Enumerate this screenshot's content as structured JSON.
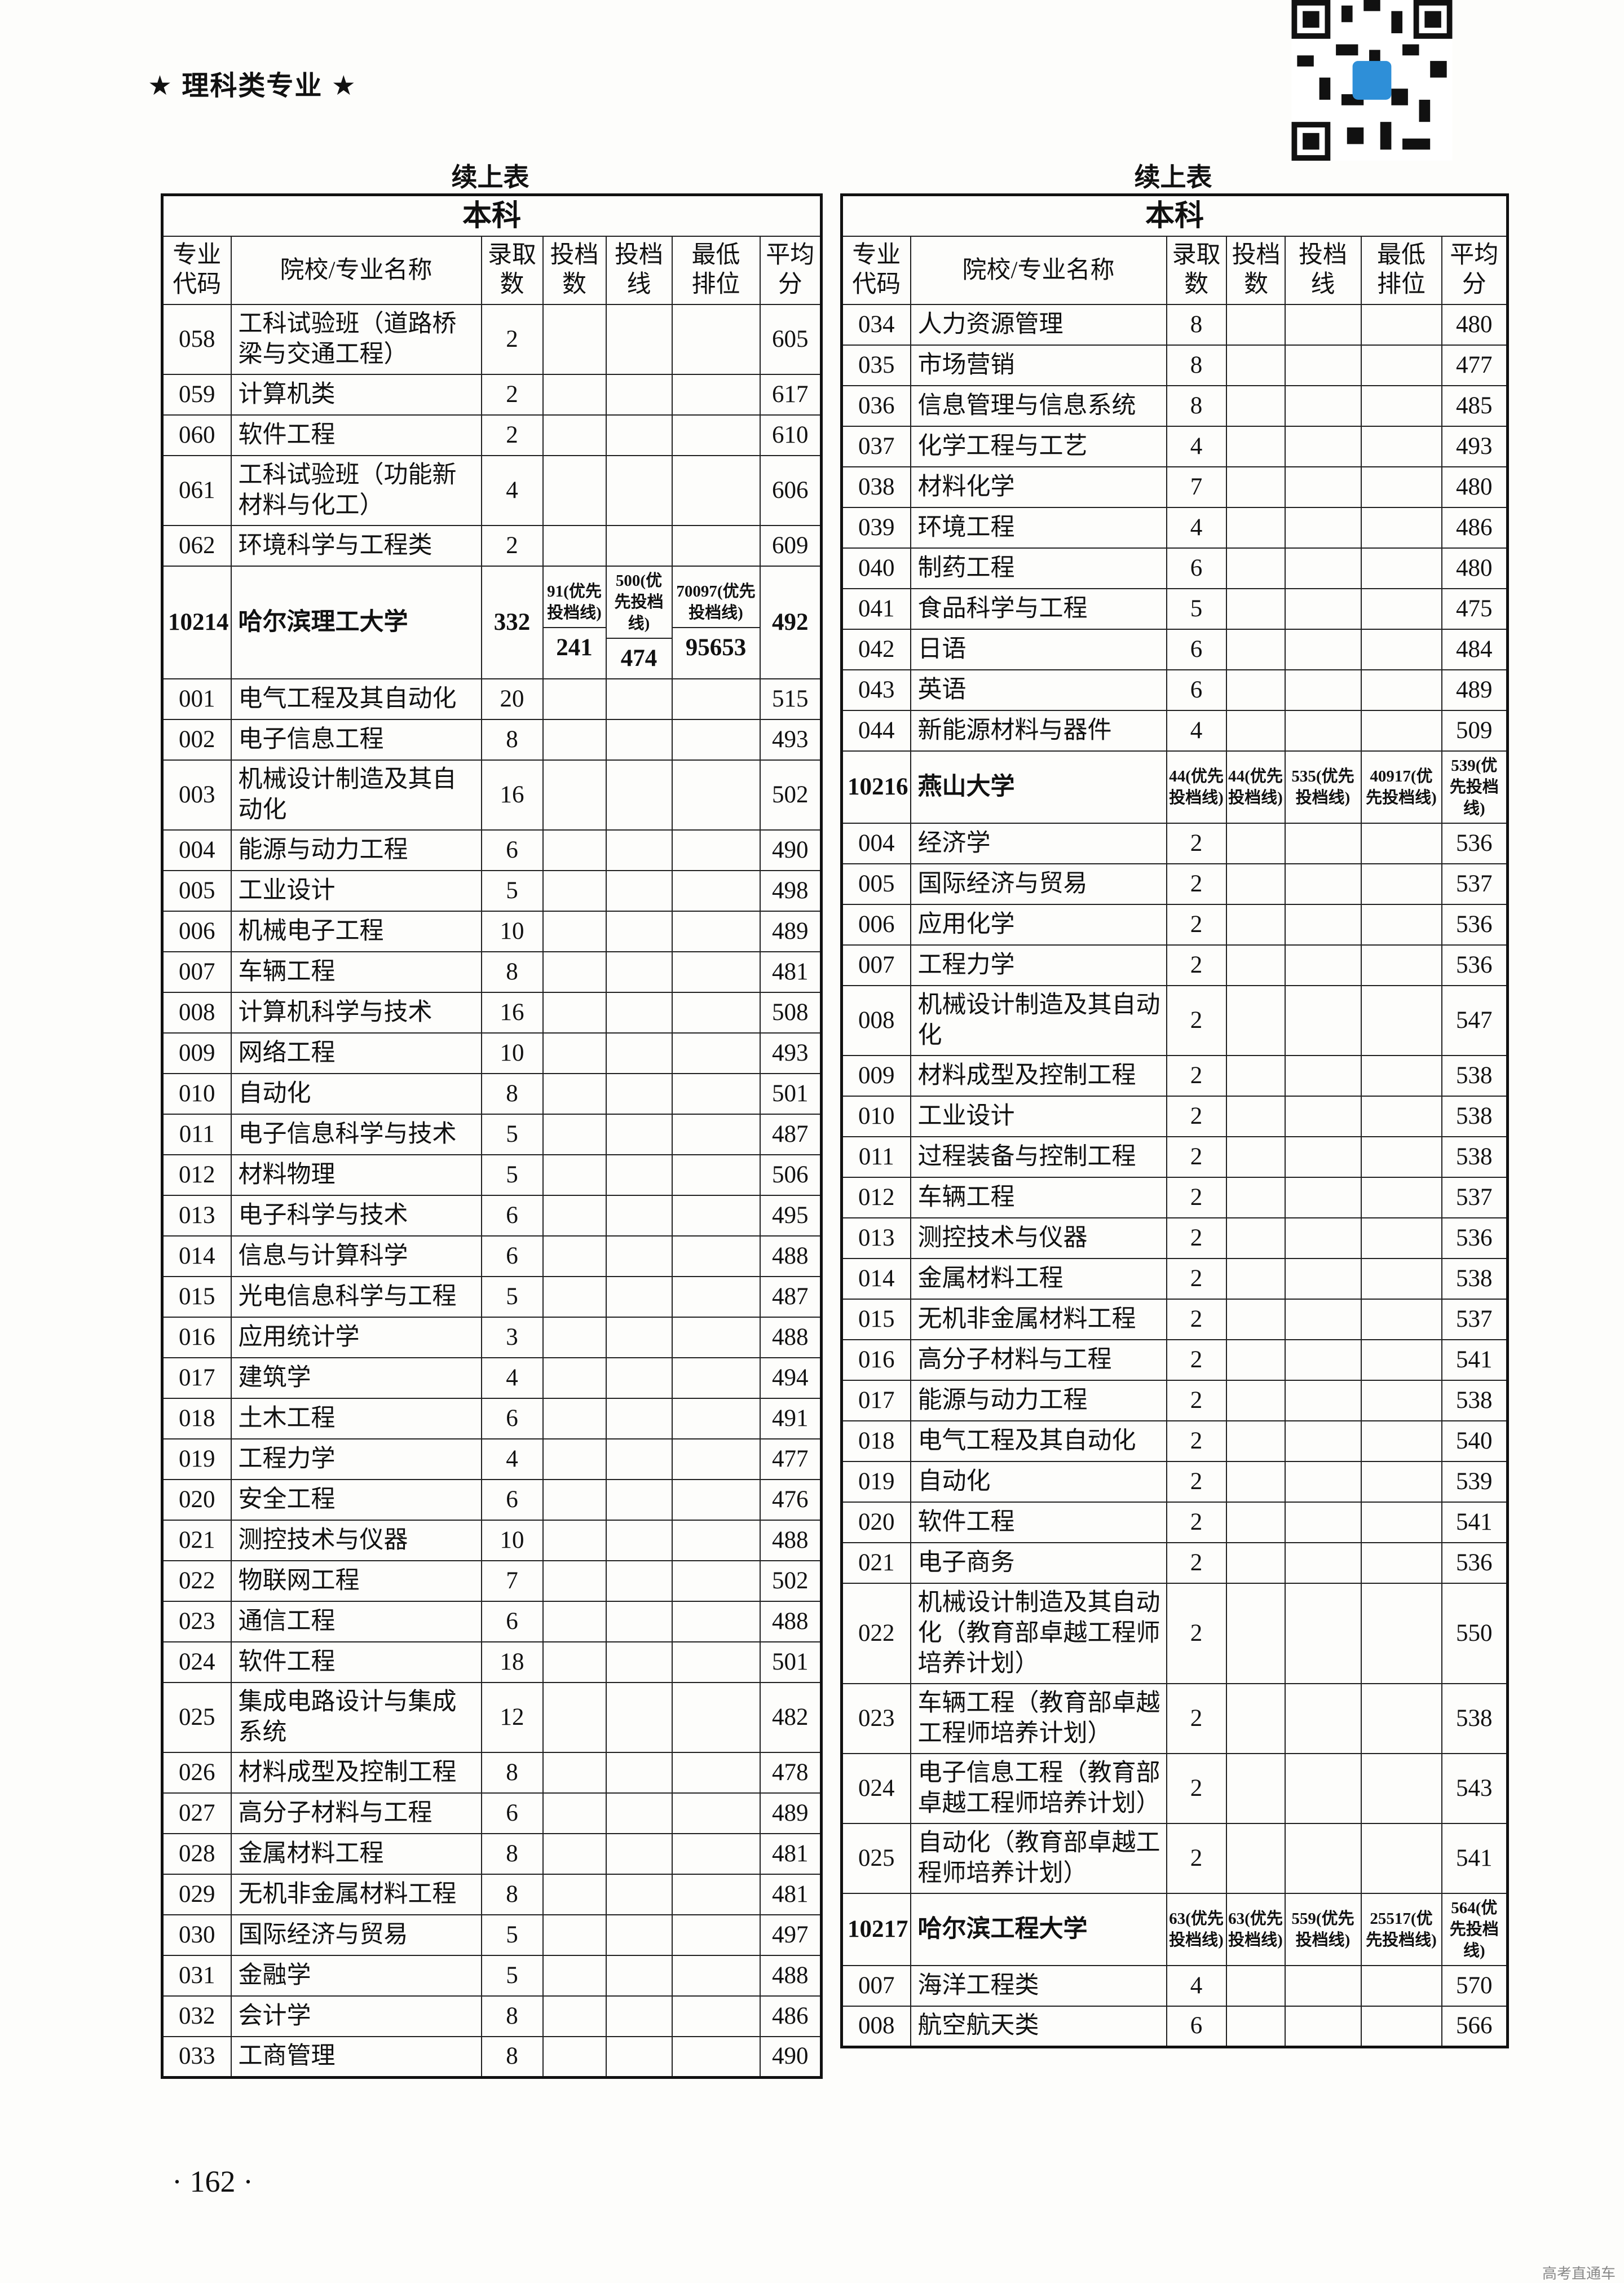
{
  "header": "★ 理科类专业 ★",
  "page_number": "· 162 ·",
  "footer": "高考直通车",
  "left_table": {
    "caption": "续上表",
    "section": "本科",
    "headers": [
      "专业代码",
      "院校/专业名称",
      "录取数",
      "投档数",
      "投档线",
      "最低排位",
      "平均分"
    ],
    "rows": [
      [
        "058",
        "工科试验班（道路桥梁与交通工程）",
        "2",
        null,
        null,
        null,
        "605"
      ],
      [
        "059",
        "计算机类",
        "2",
        null,
        null,
        null,
        "617"
      ],
      [
        "060",
        "软件工程",
        "2",
        null,
        null,
        null,
        "610"
      ],
      [
        "061",
        "工科试验班（功能新材料与化工）",
        "4",
        null,
        null,
        null,
        "606"
      ],
      [
        "062",
        "环境科学与工程类",
        "2",
        null,
        null,
        null,
        "609"
      ],
      [
        "10214",
        "哈尔滨理工大学",
        "332",
        [
          "91(优先投档线)",
          "241"
        ],
        [
          "500(优先投档线)",
          "474"
        ],
        [
          "70097(优先投档线)",
          "95653"
        ],
        "492"
      ],
      [
        "001",
        "电气工程及其自动化",
        "20",
        null,
        null,
        null,
        "515"
      ],
      [
        "002",
        "电子信息工程",
        "8",
        null,
        null,
        null,
        "493"
      ],
      [
        "003",
        "机械设计制造及其自动化",
        "16",
        null,
        null,
        null,
        "502"
      ],
      [
        "004",
        "能源与动力工程",
        "6",
        null,
        null,
        null,
        "490"
      ],
      [
        "005",
        "工业设计",
        "5",
        null,
        null,
        null,
        "498"
      ],
      [
        "006",
        "机械电子工程",
        "10",
        null,
        null,
        null,
        "489"
      ],
      [
        "007",
        "车辆工程",
        "8",
        null,
        null,
        null,
        "481"
      ],
      [
        "008",
        "计算机科学与技术",
        "16",
        null,
        null,
        null,
        "508"
      ],
      [
        "009",
        "网络工程",
        "10",
        null,
        null,
        null,
        "493"
      ],
      [
        "010",
        "自动化",
        "8",
        null,
        null,
        null,
        "501"
      ],
      [
        "011",
        "电子信息科学与技术",
        "5",
        null,
        null,
        null,
        "487"
      ],
      [
        "012",
        "材料物理",
        "5",
        null,
        null,
        null,
        "506"
      ],
      [
        "013",
        "电子科学与技术",
        "6",
        null,
        null,
        null,
        "495"
      ],
      [
        "014",
        "信息与计算科学",
        "6",
        null,
        null,
        null,
        "488"
      ],
      [
        "015",
        "光电信息科学与工程",
        "5",
        null,
        null,
        null,
        "487"
      ],
      [
        "016",
        "应用统计学",
        "3",
        null,
        null,
        null,
        "488"
      ],
      [
        "017",
        "建筑学",
        "4",
        null,
        null,
        null,
        "494"
      ],
      [
        "018",
        "土木工程",
        "6",
        null,
        null,
        null,
        "491"
      ],
      [
        "019",
        "工程力学",
        "4",
        null,
        null,
        null,
        "477"
      ],
      [
        "020",
        "安全工程",
        "6",
        null,
        null,
        null,
        "476"
      ],
      [
        "021",
        "测控技术与仪器",
        "10",
        null,
        null,
        null,
        "488"
      ],
      [
        "022",
        "物联网工程",
        "7",
        null,
        null,
        null,
        "502"
      ],
      [
        "023",
        "通信工程",
        "6",
        null,
        null,
        null,
        "488"
      ],
      [
        "024",
        "软件工程",
        "18",
        null,
        null,
        null,
        "501"
      ],
      [
        "025",
        "集成电路设计与集成系统",
        "12",
        null,
        null,
        null,
        "482"
      ],
      [
        "026",
        "材料成型及控制工程",
        "8",
        null,
        null,
        null,
        "478"
      ],
      [
        "027",
        "高分子材料与工程",
        "6",
        null,
        null,
        null,
        "489"
      ],
      [
        "028",
        "金属材料工程",
        "8",
        null,
        null,
        null,
        "481"
      ],
      [
        "029",
        "无机非金属材料工程",
        "8",
        null,
        null,
        null,
        "481"
      ],
      [
        "030",
        "国际经济与贸易",
        "5",
        null,
        null,
        null,
        "497"
      ],
      [
        "031",
        "金融学",
        "5",
        null,
        null,
        null,
        "488"
      ],
      [
        "032",
        "会计学",
        "8",
        null,
        null,
        null,
        "486"
      ],
      [
        "033",
        "工商管理",
        "8",
        null,
        null,
        null,
        "490"
      ]
    ]
  },
  "right_table": {
    "caption": "续上表",
    "section": "本科",
    "headers": [
      "专业代码",
      "院校/专业名称",
      "录取数",
      "投档数",
      "投档线",
      "最低排位",
      "平均分"
    ],
    "rows": [
      [
        "034",
        "人力资源管理",
        "8",
        null,
        null,
        null,
        "480"
      ],
      [
        "035",
        "市场营销",
        "8",
        null,
        null,
        null,
        "477"
      ],
      [
        "036",
        "信息管理与信息系统",
        "8",
        null,
        null,
        null,
        "485"
      ],
      [
        "037",
        "化学工程与工艺",
        "4",
        null,
        null,
        null,
        "493"
      ],
      [
        "038",
        "材料化学",
        "7",
        null,
        null,
        null,
        "480"
      ],
      [
        "039",
        "环境工程",
        "4",
        null,
        null,
        null,
        "486"
      ],
      [
        "040",
        "制药工程",
        "6",
        null,
        null,
        null,
        "480"
      ],
      [
        "041",
        "食品科学与工程",
        "5",
        null,
        null,
        null,
        "475"
      ],
      [
        "042",
        "日语",
        "6",
        null,
        null,
        null,
        "484"
      ],
      [
        "043",
        "英语",
        "6",
        null,
        null,
        null,
        "489"
      ],
      [
        "044",
        "新能源材料与器件",
        "4",
        null,
        null,
        null,
        "509"
      ],
      [
        "10216",
        "燕山大学",
        [
          "44(优先投档线)"
        ],
        [
          "44(优先投档线)"
        ],
        [
          "535(优先投档线)"
        ],
        [
          "40917(优先投档线)"
        ],
        [
          "539(优先投档线)"
        ]
      ],
      [
        "004",
        "经济学",
        "2",
        null,
        null,
        null,
        "536"
      ],
      [
        "005",
        "国际经济与贸易",
        "2",
        null,
        null,
        null,
        "537"
      ],
      [
        "006",
        "应用化学",
        "2",
        null,
        null,
        null,
        "536"
      ],
      [
        "007",
        "工程力学",
        "2",
        null,
        null,
        null,
        "536"
      ],
      [
        "008",
        "机械设计制造及其自动化",
        "2",
        null,
        null,
        null,
        "547"
      ],
      [
        "009",
        "材料成型及控制工程",
        "2",
        null,
        null,
        null,
        "538"
      ],
      [
        "010",
        "工业设计",
        "2",
        null,
        null,
        null,
        "538"
      ],
      [
        "011",
        "过程装备与控制工程",
        "2",
        null,
        null,
        null,
        "538"
      ],
      [
        "012",
        "车辆工程",
        "2",
        null,
        null,
        null,
        "537"
      ],
      [
        "013",
        "测控技术与仪器",
        "2",
        null,
        null,
        null,
        "536"
      ],
      [
        "014",
        "金属材料工程",
        "2",
        null,
        null,
        null,
        "538"
      ],
      [
        "015",
        "无机非金属材料工程",
        "2",
        null,
        null,
        null,
        "537"
      ],
      [
        "016",
        "高分子材料与工程",
        "2",
        null,
        null,
        null,
        "541"
      ],
      [
        "017",
        "能源与动力工程",
        "2",
        null,
        null,
        null,
        "538"
      ],
      [
        "018",
        "电气工程及其自动化",
        "2",
        null,
        null,
        null,
        "540"
      ],
      [
        "019",
        "自动化",
        "2",
        null,
        null,
        null,
        "539"
      ],
      [
        "020",
        "软件工程",
        "2",
        null,
        null,
        null,
        "541"
      ],
      [
        "021",
        "电子商务",
        "2",
        null,
        null,
        null,
        "536"
      ],
      [
        "022",
        "机械设计制造及其自动化（教育部卓越工程师培养计划）",
        "2",
        null,
        null,
        null,
        "550"
      ],
      [
        "023",
        "车辆工程（教育部卓越工程师培养计划）",
        "2",
        null,
        null,
        null,
        "538"
      ],
      [
        "024",
        "电子信息工程（教育部卓越工程师培养计划）",
        "2",
        null,
        null,
        null,
        "543"
      ],
      [
        "025",
        "自动化（教育部卓越工程师培养计划）",
        "2",
        null,
        null,
        null,
        "541"
      ],
      [
        "10217",
        "哈尔滨工程大学",
        [
          "63(优先投档线)"
        ],
        [
          "63(优先投档线)"
        ],
        [
          "559(优先投档线)"
        ],
        [
          "25517(优先投档线)"
        ],
        [
          "564(优先投档线)"
        ]
      ],
      [
        "007",
        "海洋工程类",
        "4",
        null,
        null,
        null,
        "570"
      ],
      [
        "008",
        "航空航天类",
        "6",
        null,
        null,
        null,
        "566"
      ]
    ]
  }
}
